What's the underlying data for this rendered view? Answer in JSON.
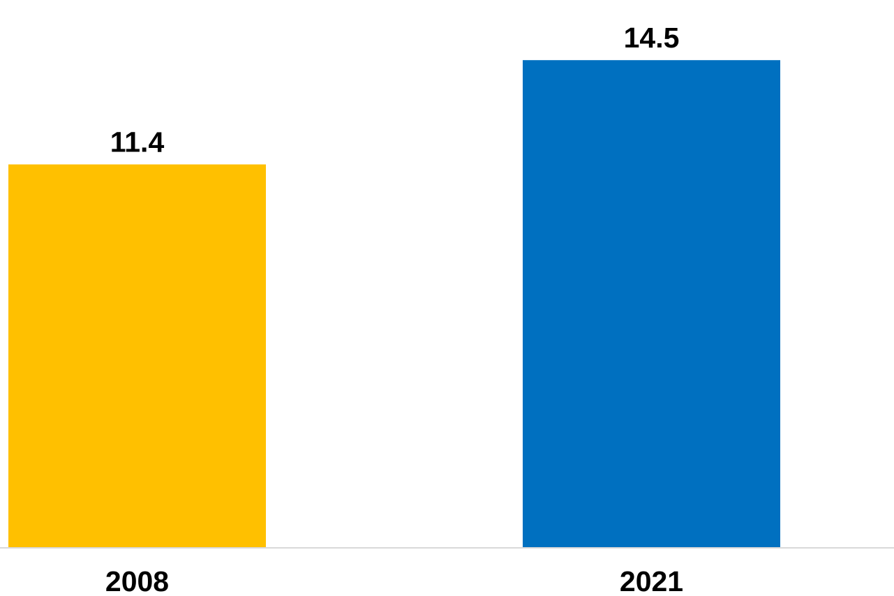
{
  "chart_data": {
    "type": "bar",
    "categories": [
      "2008",
      "2021"
    ],
    "values": [
      11.4,
      14.5
    ],
    "data_labels": [
      "11.4",
      "14.5"
    ],
    "colors": [
      "#FFC000",
      "#0070C0"
    ],
    "axis_color": "#D9D9D9",
    "ylim": [
      0,
      16.06
    ],
    "grid": false,
    "legend": "none"
  }
}
